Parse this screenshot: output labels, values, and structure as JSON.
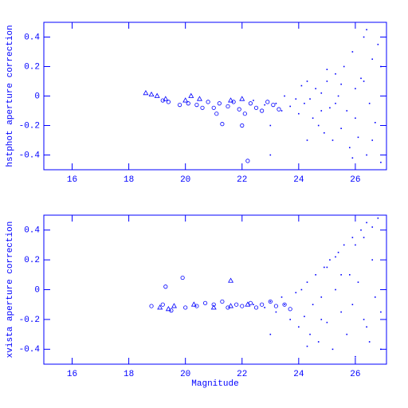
{
  "chart_data": [
    {
      "type": "scatter",
      "ylabel": "hstphot aperture correction",
      "xlim": [
        15,
        27.1
      ],
      "ylim": [
        -0.5,
        0.5
      ],
      "xticks": [
        16,
        18,
        20,
        22,
        24,
        26
      ],
      "yticks": [
        -0.4,
        -0.2,
        0,
        0.2,
        0.4
      ],
      "series": [
        {
          "marker": "triangle",
          "color": "#0000ff",
          "x": [
            18.6,
            18.8,
            19.0,
            19.3,
            20.0,
            20.2,
            20.5,
            21.6,
            22.0
          ],
          "y": [
            0.02,
            0.01,
            0.0,
            -0.02,
            -0.03,
            0.0,
            -0.02,
            -0.03,
            -0.02
          ]
        },
        {
          "marker": "circle",
          "color": "#0000ff",
          "x": [
            19.2,
            19.4,
            19.8,
            20.1,
            20.4,
            20.8,
            21.0,
            21.2,
            21.3,
            21.5,
            21.7,
            21.9,
            22.1,
            22.3,
            22.5,
            22.7,
            22.9,
            23.1,
            23.3,
            20.6,
            21.1,
            22.0,
            22.2
          ],
          "y": [
            -0.03,
            -0.04,
            -0.06,
            -0.05,
            -0.06,
            -0.04,
            -0.08,
            -0.05,
            -0.19,
            -0.07,
            -0.04,
            -0.09,
            -0.12,
            -0.05,
            -0.08,
            -0.1,
            -0.04,
            -0.06,
            -0.09,
            -0.08,
            -0.12,
            -0.2,
            -0.44
          ]
        },
        {
          "marker": "dot",
          "color": "#0000ff",
          "x": [
            22.4,
            22.8,
            23.0,
            23.2,
            23.4,
            23.5,
            23.7,
            23.9,
            24.0,
            24.1,
            24.2,
            24.3,
            24.4,
            24.5,
            24.6,
            24.7,
            24.8,
            24.9,
            25.0,
            25.1,
            25.2,
            25.3,
            25.4,
            25.5,
            25.6,
            25.7,
            25.8,
            25.9,
            26.0,
            26.1,
            26.2,
            26.3,
            26.4,
            26.5,
            26.6,
            26.7,
            26.8,
            26.9,
            23.0,
            24.3,
            25.0,
            25.5,
            26.0,
            26.4,
            26.6,
            26.9,
            24.8,
            25.3,
            25.9,
            26.3
          ],
          "y": [
            -0.03,
            -0.06,
            -0.2,
            -0.05,
            -0.1,
            0.0,
            -0.07,
            -0.02,
            -0.12,
            0.07,
            -0.05,
            0.1,
            -0.02,
            -0.15,
            0.05,
            -0.2,
            0.02,
            -0.25,
            0.1,
            -0.08,
            -0.3,
            0.15,
            0.0,
            -0.22,
            0.2,
            -0.1,
            -0.35,
            0.3,
            0.05,
            -0.28,
            0.12,
            0.4,
            -0.4,
            -0.05,
            0.25,
            -0.18,
            0.35,
            -0.45,
            -0.4,
            -0.3,
            0.18,
            0.08,
            -0.15,
            0.45,
            -0.3,
            0.2,
            -0.1,
            -0.05,
            -0.42,
            0.1
          ]
        }
      ]
    },
    {
      "type": "scatter",
      "ylabel": "xvista aperture correction",
      "xlabel": "Magnitude",
      "xlim": [
        15,
        27.1
      ],
      "ylim": [
        -0.5,
        0.5
      ],
      "xticks": [
        16,
        18,
        20,
        22,
        24,
        26
      ],
      "yticks": [
        -0.4,
        -0.2,
        0,
        0.2,
        0.4
      ],
      "series": [
        {
          "marker": "triangle",
          "color": "#0000ff",
          "x": [
            19.1,
            19.4,
            19.6,
            20.3,
            21.0,
            21.6,
            22.2,
            21.6
          ],
          "y": [
            -0.12,
            -0.13,
            -0.11,
            -0.1,
            -0.12,
            -0.11,
            -0.1,
            0.06
          ]
        },
        {
          "marker": "circle",
          "color": "#0000ff",
          "x": [
            18.8,
            19.2,
            19.3,
            19.5,
            19.9,
            20.0,
            20.4,
            20.7,
            21.0,
            21.3,
            21.5,
            21.8,
            22.0,
            22.3,
            22.5,
            22.7,
            23.0,
            23.2,
            23.5,
            23.7
          ],
          "y": [
            -0.11,
            -0.1,
            0.02,
            -0.14,
            0.08,
            -0.12,
            -0.11,
            -0.09,
            -0.1,
            -0.08,
            -0.12,
            -0.1,
            -0.11,
            -0.09,
            -0.12,
            -0.1,
            -0.08,
            -0.11,
            -0.1,
            -0.13
          ]
        },
        {
          "marker": "dot",
          "color": "#0000ff",
          "x": [
            22.4,
            22.8,
            23.0,
            23.2,
            23.4,
            23.5,
            23.7,
            23.9,
            24.0,
            24.1,
            24.2,
            24.3,
            24.4,
            24.5,
            24.6,
            24.7,
            24.8,
            24.9,
            25.0,
            25.1,
            25.2,
            25.3,
            25.4,
            25.5,
            25.6,
            25.7,
            25.8,
            25.9,
            26.0,
            26.1,
            26.2,
            26.3,
            26.4,
            26.5,
            26.6,
            26.7,
            26.8,
            26.9,
            23.0,
            24.3,
            25.0,
            25.5,
            26.0,
            26.4,
            26.6,
            26.9,
            24.8,
            25.3,
            25.9,
            26.3
          ],
          "y": [
            -0.1,
            -0.12,
            -0.08,
            -0.15,
            -0.05,
            -0.1,
            -0.2,
            -0.02,
            -0.25,
            0.0,
            -0.18,
            0.05,
            -0.3,
            -0.1,
            0.1,
            -0.35,
            -0.05,
            0.15,
            -0.22,
            0.2,
            -0.4,
            0.0,
            0.25,
            -0.15,
            0.3,
            -0.3,
            0.1,
            0.35,
            -0.45,
            0.05,
            0.4,
            -0.2,
            0.45,
            -0.35,
            0.2,
            -0.05,
            0.48,
            -0.4,
            -0.3,
            -0.38,
            0.15,
            0.1,
            0.3,
            -0.25,
            0.42,
            -0.15,
            -0.2,
            0.22,
            -0.1,
            0.35
          ]
        }
      ]
    }
  ]
}
